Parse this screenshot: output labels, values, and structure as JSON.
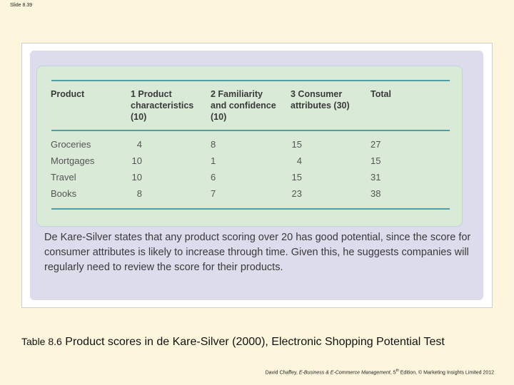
{
  "slide_number": "Slide 8.39",
  "table": {
    "headers": [
      "Product",
      "1 Product\ncharacteristics\n(10)",
      "2 Familiarity\nand confidence\n(10)",
      "3 Consumer\nattributes (30)",
      "Total"
    ],
    "rows": [
      {
        "product": "Groceries",
        "c1": "4",
        "c2": "8",
        "c3": "15",
        "total": "27"
      },
      {
        "product": "Mortgages",
        "c1": "10",
        "c2": "1",
        "c3": "4",
        "total": "15"
      },
      {
        "product": "Travel",
        "c1": "10",
        "c2": "6",
        "c3": "15",
        "total": "31"
      },
      {
        "product": "Books",
        "c1": "8",
        "c2": "7",
        "c3": "23",
        "total": "38"
      }
    ]
  },
  "note": "De Kare-Silver states that any product scoring over 20 has good potential, since the score for consumer attributes is likely to increase through time. Given this, he suggests companies will regularly need to review the score for their products.",
  "caption": {
    "label": "Table 8.6",
    "text": "Product scores in de Kare-Silver (2000), Electronic Shopping Potential Test"
  },
  "credit": {
    "author": "David Chaffey,",
    "book": "E-Business & E-Commerce Management",
    "edition_num": "5",
    "edition_sup": "th",
    "rest": "Edition, © Marketing Insights Limited 2012"
  }
}
